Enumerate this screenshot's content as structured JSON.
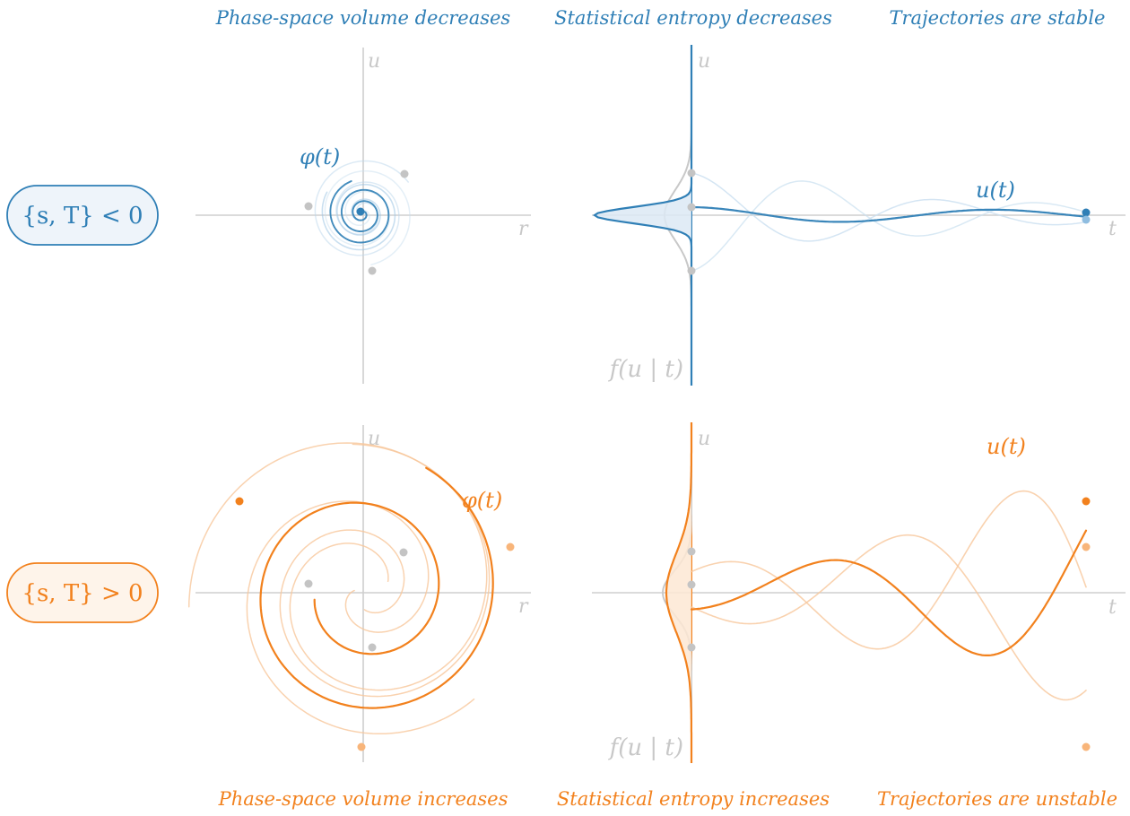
{
  "captions": {
    "top_phase": "Phase-space volume decreases",
    "top_entropy": "Statistical entropy decreases",
    "top_trajectories": "Trajectories are stable",
    "bottom_phase": "Phase-space volume increases",
    "bottom_entropy": "Statistical entropy increases",
    "bottom_trajectories": "Trajectories are unstable"
  },
  "regimes": {
    "stable": {
      "label": "{s, T} < 0",
      "color": "#2f7fb6",
      "fill": "#eef4fa"
    },
    "unstable": {
      "label": "{s, T} > 0",
      "color": "#f2811d",
      "fill": "#fef4ea"
    }
  },
  "axes": {
    "u": "u",
    "r": "r",
    "t": "t",
    "density": "f(u | t)"
  },
  "labels": {
    "phi": "φ(t)",
    "u_of_t": "u(t)"
  },
  "colors": {
    "axis": "#cfcfcf",
    "grey_point": "#c4c4c4",
    "blue": "#2f7fb6",
    "orange": "#f2811d",
    "orange_light": "#f8b57a",
    "blue_light": "#8fbde0"
  }
}
